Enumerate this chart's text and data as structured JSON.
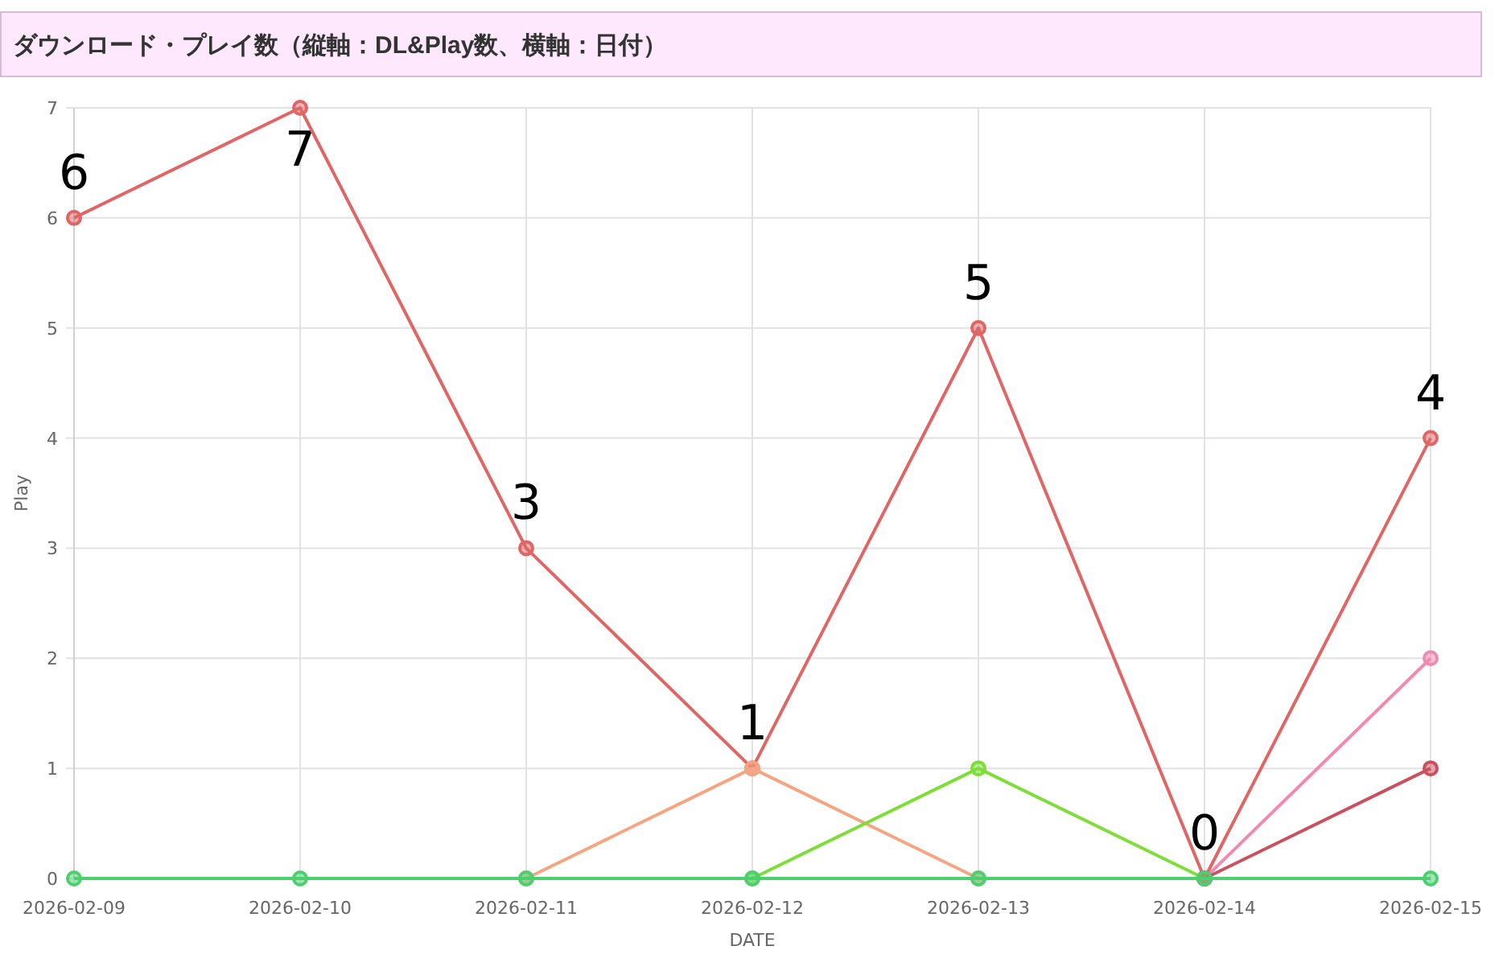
{
  "chart_data": {
    "type": "line",
    "title": "ダウンロード・プレイ数（縦軸：DL&Play数、横軸：日付）",
    "xlabel": "DATE",
    "ylabel": "Play",
    "categories": [
      "2026-02-09",
      "2026-02-10",
      "2026-02-11",
      "2026-02-12",
      "2026-02-13",
      "2026-02-14",
      "2026-02-15"
    ],
    "ylim": [
      0,
      7
    ],
    "yticks": [
      0,
      1,
      2,
      3,
      4,
      5,
      6,
      7
    ],
    "grid": true,
    "marker": "circle",
    "series": [
      {
        "color": "#e06666",
        "values": [
          6,
          7,
          3,
          1,
          5,
          0,
          4
        ],
        "value_labels": [
          "6",
          "7",
          "3",
          "1",
          "5",
          "0",
          "4"
        ]
      },
      {
        "color": "#f4a582",
        "values": [
          null,
          null,
          0,
          1,
          0,
          null,
          null
        ]
      },
      {
        "color": "#7fdd3a",
        "values": [
          null,
          null,
          null,
          0,
          1,
          0,
          null
        ]
      },
      {
        "color": "#f08ab0",
        "values": [
          null,
          null,
          null,
          null,
          null,
          0,
          2
        ]
      },
      {
        "color": "#c9505f",
        "values": [
          null,
          null,
          null,
          null,
          null,
          0,
          1
        ]
      },
      {
        "color": "#4ccf6e",
        "values": [
          0,
          0,
          0,
          0,
          0,
          0,
          0
        ]
      }
    ]
  }
}
